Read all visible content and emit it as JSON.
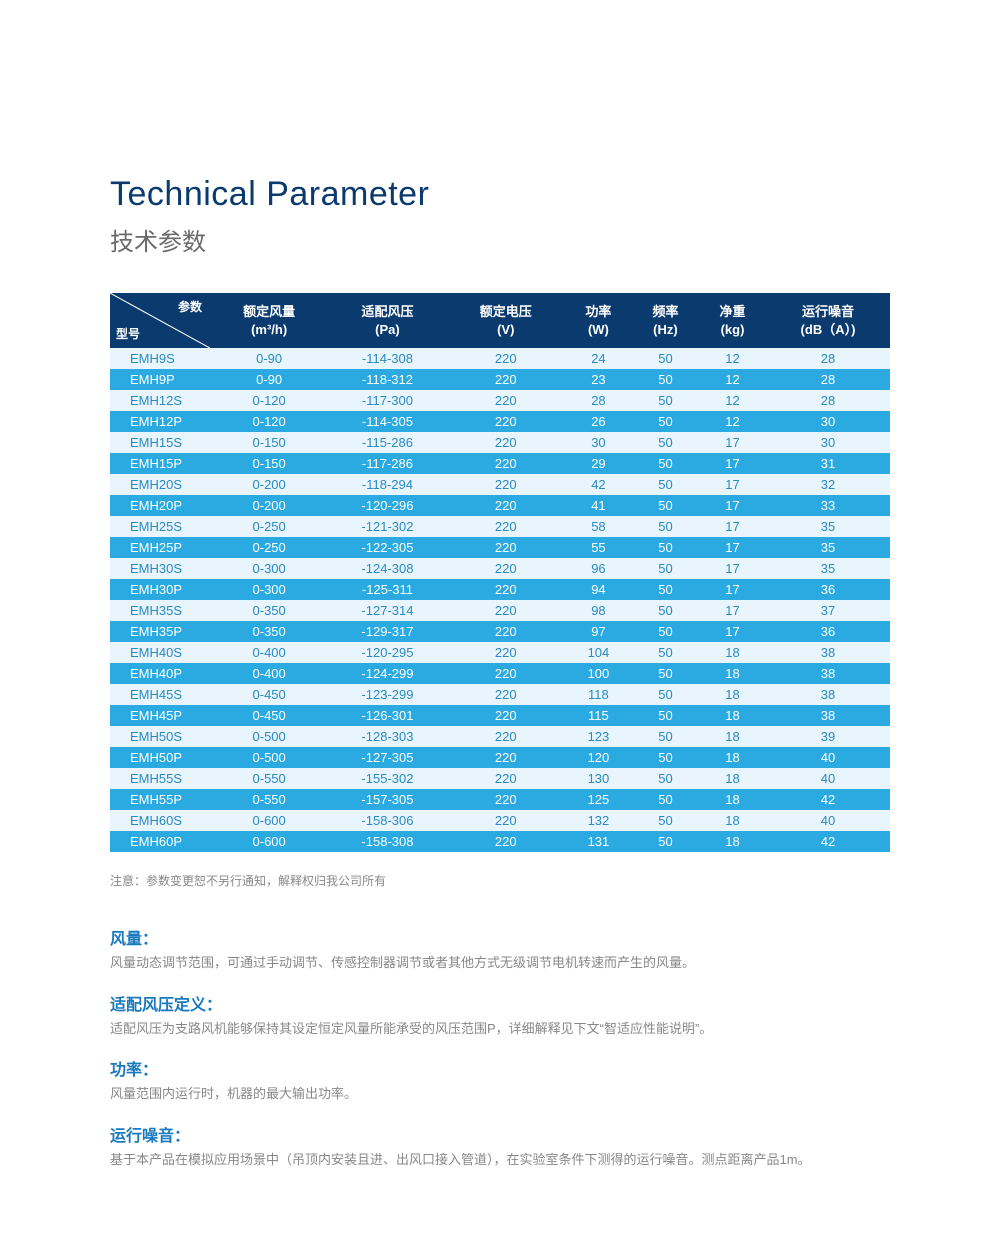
{
  "header": {
    "title_en": "Technical Parameter",
    "title_zh": "技术参数"
  },
  "table": {
    "corner_top": "参数",
    "corner_bottom": "型号",
    "columns": [
      {
        "label": "额定风量",
        "unit": "(m³/h)"
      },
      {
        "label": "适配风压",
        "unit": "(Pa)"
      },
      {
        "label": "额定电压",
        "unit": "(V)"
      },
      {
        "label": "功率",
        "unit": "(W)"
      },
      {
        "label": "频率",
        "unit": "(Hz)"
      },
      {
        "label": "净重",
        "unit": "(kg)"
      },
      {
        "label": "运行噪音",
        "unit": "(dB（A）)"
      }
    ],
    "rows": [
      [
        "EMH9S",
        "0-90",
        "-114-308",
        "220",
        "24",
        "50",
        "12",
        "28"
      ],
      [
        "EMH9P",
        "0-90",
        "-118-312",
        "220",
        "23",
        "50",
        "12",
        "28"
      ],
      [
        "EMH12S",
        "0-120",
        "-117-300",
        "220",
        "28",
        "50",
        "12",
        "28"
      ],
      [
        "EMH12P",
        "0-120",
        "-114-305",
        "220",
        "26",
        "50",
        "12",
        "30"
      ],
      [
        "EMH15S",
        "0-150",
        "-115-286",
        "220",
        "30",
        "50",
        "17",
        "30"
      ],
      [
        "EMH15P",
        "0-150",
        "-117-286",
        "220",
        "29",
        "50",
        "17",
        "31"
      ],
      [
        "EMH20S",
        "0-200",
        "-118-294",
        "220",
        "42",
        "50",
        "17",
        "32"
      ],
      [
        "EMH20P",
        "0-200",
        "-120-296",
        "220",
        "41",
        "50",
        "17",
        "33"
      ],
      [
        "EMH25S",
        "0-250",
        "-121-302",
        "220",
        "58",
        "50",
        "17",
        "35"
      ],
      [
        "EMH25P",
        "0-250",
        "-122-305",
        "220",
        "55",
        "50",
        "17",
        "35"
      ],
      [
        "EMH30S",
        "0-300",
        "-124-308",
        "220",
        "96",
        "50",
        "17",
        "35"
      ],
      [
        "EMH30P",
        "0-300",
        "-125-311",
        "220",
        "94",
        "50",
        "17",
        "36"
      ],
      [
        "EMH35S",
        "0-350",
        "-127-314",
        "220",
        "98",
        "50",
        "17",
        "37"
      ],
      [
        "EMH35P",
        "0-350",
        "-129-317",
        "220",
        "97",
        "50",
        "17",
        "36"
      ],
      [
        "EMH40S",
        "0-400",
        "-120-295",
        "220",
        "104",
        "50",
        "18",
        "38"
      ],
      [
        "EMH40P",
        "0-400",
        "-124-299",
        "220",
        "100",
        "50",
        "18",
        "38"
      ],
      [
        "EMH45S",
        "0-450",
        "-123-299",
        "220",
        "118",
        "50",
        "18",
        "38"
      ],
      [
        "EMH45P",
        "0-450",
        "-126-301",
        "220",
        "115",
        "50",
        "18",
        "38"
      ],
      [
        "EMH50S",
        "0-500",
        "-128-303",
        "220",
        "123",
        "50",
        "18",
        "39"
      ],
      [
        "EMH50P",
        "0-500",
        "-127-305",
        "220",
        "120",
        "50",
        "18",
        "40"
      ],
      [
        "EMH55S",
        "0-550",
        "-155-302",
        "220",
        "130",
        "50",
        "18",
        "40"
      ],
      [
        "EMH55P",
        "0-550",
        "-157-305",
        "220",
        "125",
        "50",
        "18",
        "42"
      ],
      [
        "EMH60S",
        "0-600",
        "-158-306",
        "220",
        "132",
        "50",
        "18",
        "40"
      ],
      [
        "EMH60P",
        "0-600",
        "-158-308",
        "220",
        "131",
        "50",
        "18",
        "42"
      ]
    ],
    "header_bg": "#0a3a6e",
    "row_odd_bg": "#e8f5fd",
    "row_odd_fg": "#2a8ac4",
    "row_even_bg": "#2aaae1",
    "row_even_fg": "#ffffff"
  },
  "note": "注意：参数变更恕不另行通知，解释权归我公司所有",
  "definitions": [
    {
      "title": "风量：",
      "body": "风量动态调节范围，可通过手动调节、传感控制器调节或者其他方式无级调节电机转速而产生的风量。"
    },
    {
      "title": "适配风压定义：",
      "body": "适配风压为支路风机能够保持其设定恒定风量所能承受的风压范围P，详细解释见下文“智适应性能说明”。"
    },
    {
      "title": "功率：",
      "body": "风量范围内运行时，机器的最大输出功率。"
    },
    {
      "title": "运行噪音：",
      "body": "基于本产品在模拟应用场景中（吊顶内安装且进、出风口接入管道），在实验室条件下测得的运行噪音。测点距离产品1m。"
    }
  ]
}
